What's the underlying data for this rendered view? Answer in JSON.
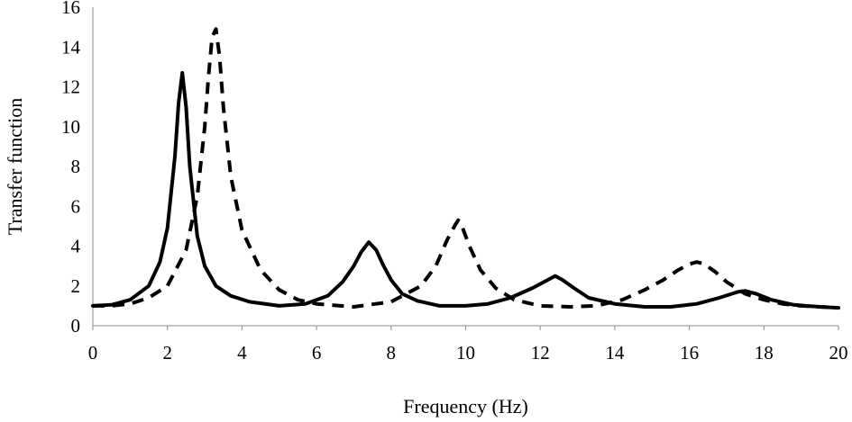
{
  "chart_data": {
    "type": "line",
    "title": "",
    "xlabel": "Frequency (Hz)",
    "ylabel": "Transfer function",
    "xlim": [
      0,
      20
    ],
    "ylim": [
      0,
      16
    ],
    "x_ticks": [
      0,
      2,
      4,
      6,
      8,
      10,
      12,
      14,
      16,
      18,
      20
    ],
    "y_ticks": [
      0,
      2,
      4,
      6,
      8,
      10,
      12,
      14,
      16
    ],
    "grid": false,
    "legend": "none",
    "series": [
      {
        "style": "solid",
        "color": "#000000",
        "x": [
          0,
          0.5,
          1.0,
          1.5,
          1.8,
          2.0,
          2.2,
          2.3,
          2.4,
          2.5,
          2.6,
          2.8,
          3.0,
          3.3,
          3.7,
          4.2,
          5.0,
          5.7,
          6.3,
          6.7,
          7.0,
          7.2,
          7.4,
          7.6,
          7.8,
          8.0,
          8.3,
          8.7,
          9.3,
          10.0,
          10.6,
          11.2,
          11.8,
          12.2,
          12.4,
          12.6,
          12.9,
          13.3,
          14.0,
          14.8,
          15.5,
          16.2,
          16.8,
          17.3,
          17.5,
          17.8,
          18.2,
          18.8,
          19.5,
          20.0
        ],
        "y": [
          1.0,
          1.05,
          1.3,
          2.0,
          3.2,
          4.9,
          8.5,
          11.2,
          12.7,
          11.0,
          8.0,
          4.5,
          3.0,
          2.0,
          1.5,
          1.2,
          1.0,
          1.1,
          1.5,
          2.2,
          3.0,
          3.7,
          4.2,
          3.8,
          3.0,
          2.3,
          1.6,
          1.25,
          1.0,
          1.0,
          1.1,
          1.4,
          1.9,
          2.3,
          2.5,
          2.3,
          1.9,
          1.4,
          1.1,
          0.95,
          0.95,
          1.1,
          1.4,
          1.7,
          1.75,
          1.6,
          1.3,
          1.05,
          0.95,
          0.9
        ]
      },
      {
        "style": "dashed",
        "color": "#000000",
        "x": [
          0,
          0.5,
          1.0,
          1.5,
          2.0,
          2.5,
          2.8,
          3.0,
          3.1,
          3.2,
          3.3,
          3.4,
          3.5,
          3.7,
          4.0,
          4.5,
          5.0,
          5.5,
          6.0,
          7.0,
          8.0,
          8.8,
          9.2,
          9.5,
          9.7,
          9.8,
          9.9,
          10.1,
          10.4,
          10.8,
          11.3,
          12.0,
          12.8,
          13.5,
          14.2,
          14.8,
          15.3,
          15.7,
          16.0,
          16.2,
          16.4,
          16.7,
          17.0,
          17.5,
          18.0,
          18.5,
          19.0,
          19.5,
          20.0
        ],
        "y": [
          1.0,
          1.0,
          1.1,
          1.4,
          2.0,
          3.8,
          6.5,
          10.0,
          12.5,
          14.5,
          14.9,
          13.5,
          11.0,
          7.5,
          4.8,
          2.8,
          1.8,
          1.3,
          1.1,
          0.95,
          1.2,
          2.0,
          3.0,
          4.3,
          5.0,
          5.3,
          5.0,
          4.0,
          2.8,
          1.9,
          1.3,
          1.0,
          0.95,
          1.0,
          1.3,
          1.8,
          2.3,
          2.8,
          3.1,
          3.2,
          3.1,
          2.7,
          2.2,
          1.6,
          1.3,
          1.1,
          1.0,
          0.95,
          0.9
        ]
      }
    ]
  }
}
